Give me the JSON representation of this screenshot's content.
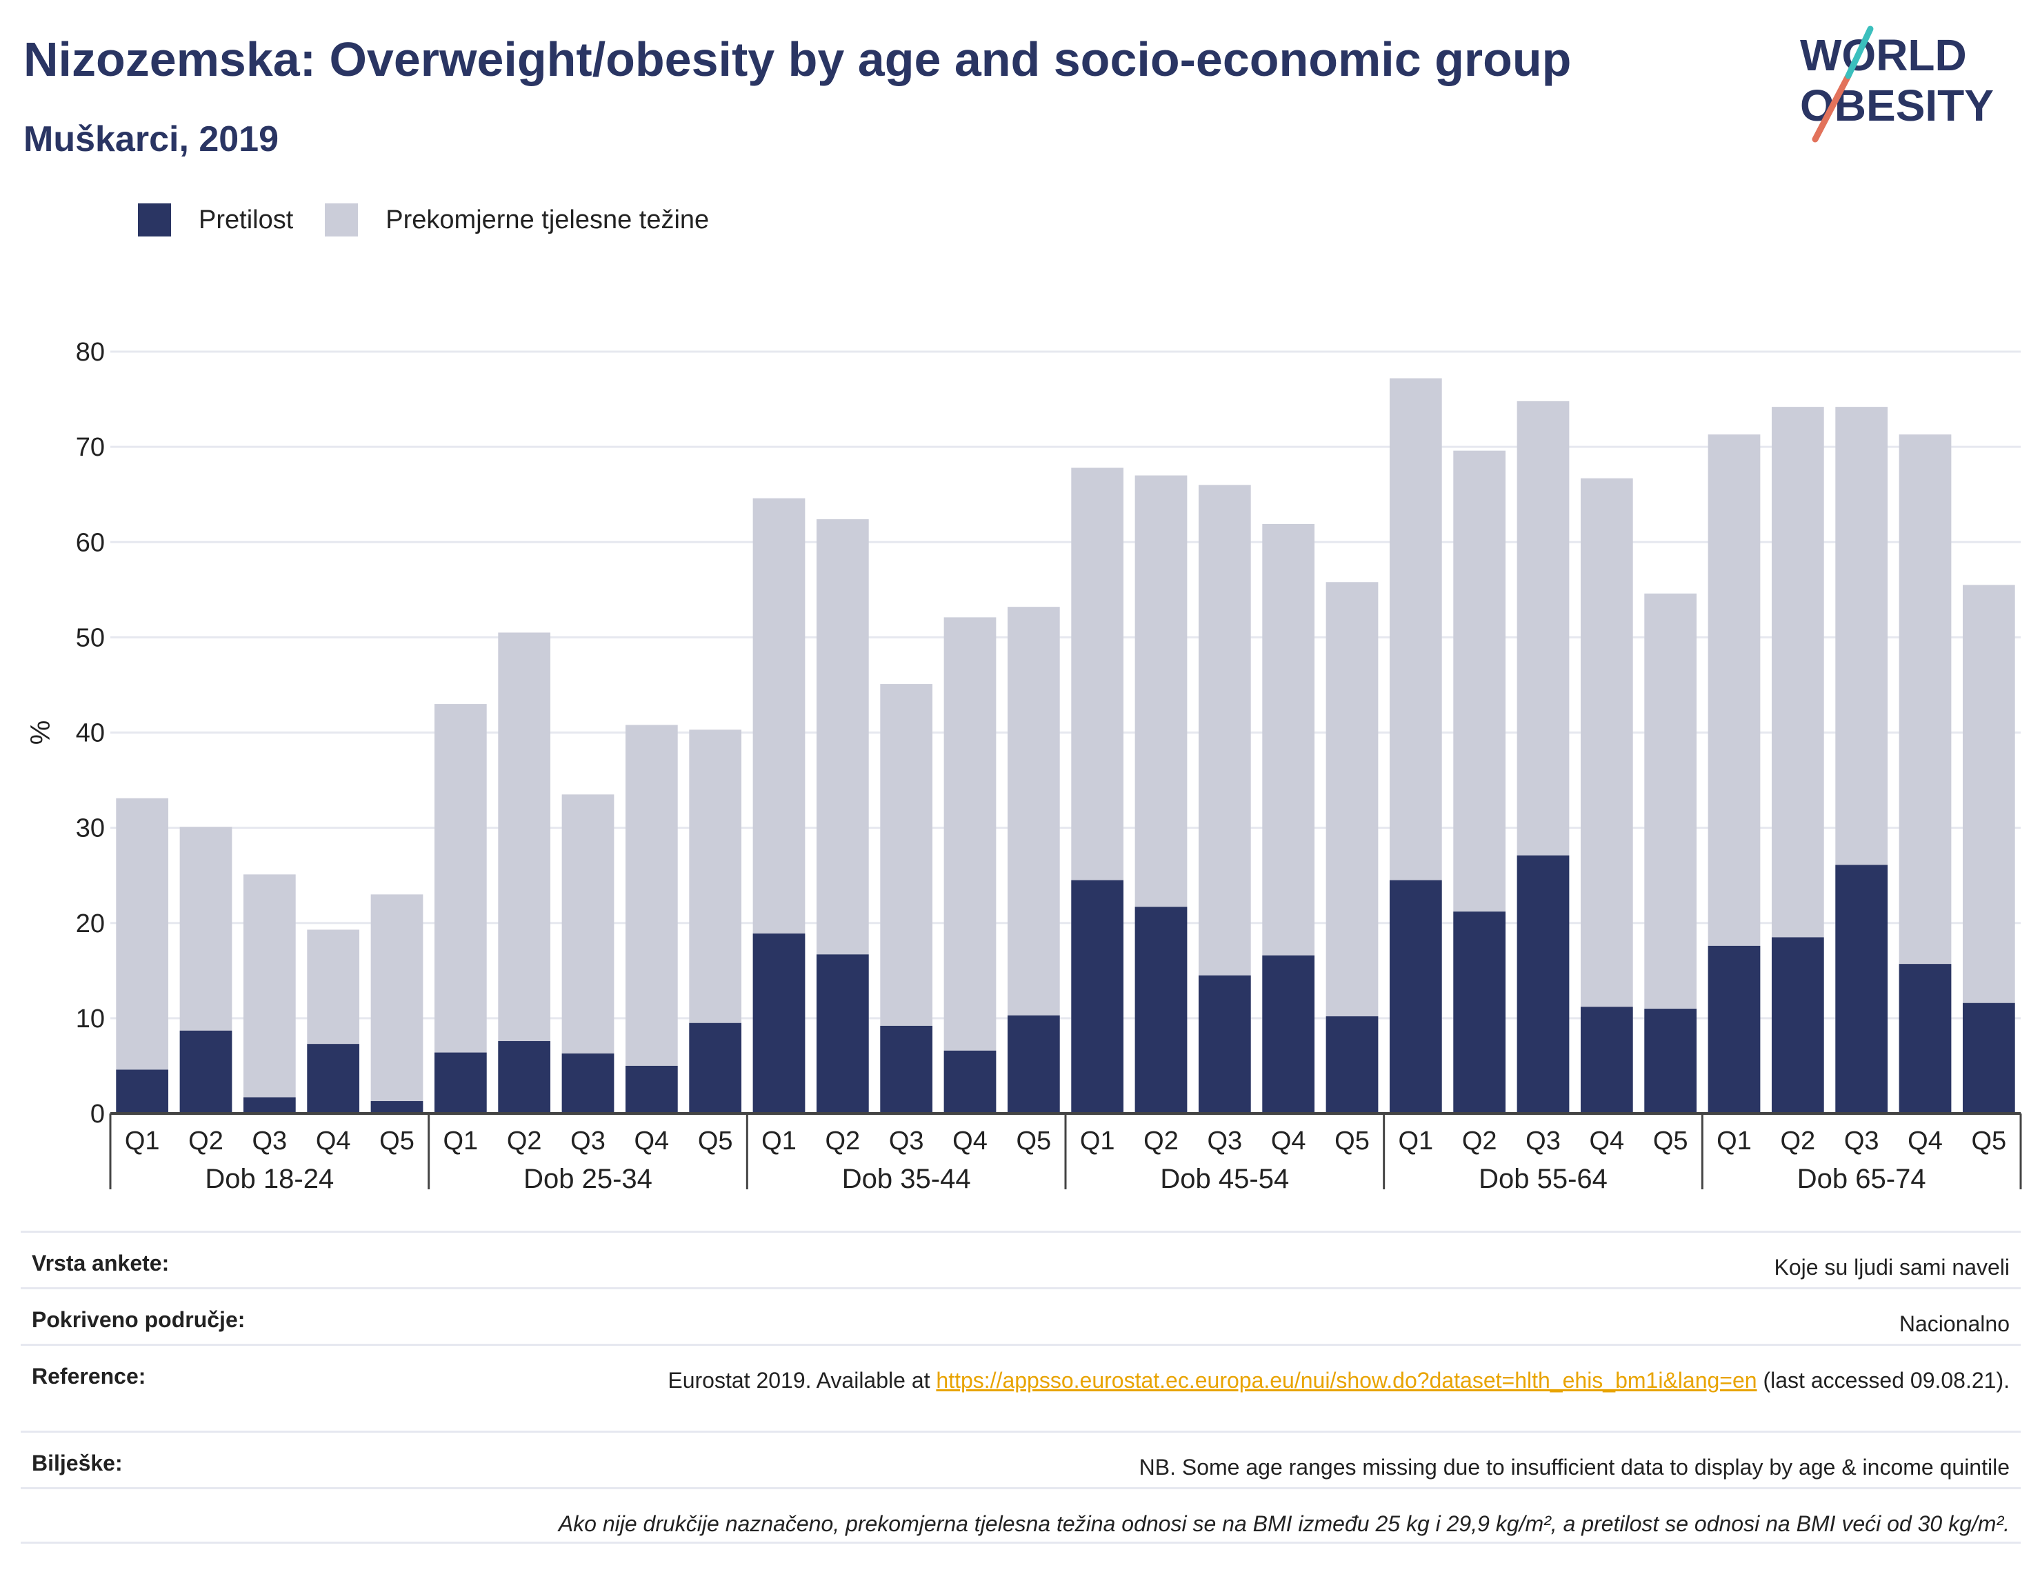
{
  "title": "Nizozemska: Overweight/obesity by age and socio-economic group",
  "subtitle": "Muškarci, 2019",
  "logo": {
    "line1": "WORLD",
    "line2": "OBESITY"
  },
  "legend": {
    "obesity_label": "Pretilost",
    "overweight_label": "Prekomjerne tjelesne težine"
  },
  "colors": {
    "obesity": "#2a3563",
    "overweight": "#cbcdd9",
    "title": "#2a3563",
    "link": "#e8a300",
    "logo_teal": "#3bbfbd",
    "logo_coral": "#e2725b"
  },
  "chart_data": {
    "type": "bar",
    "stacked": false,
    "ylabel": "%",
    "ylim": [
      0,
      80
    ],
    "yticks": [
      0,
      10,
      20,
      30,
      40,
      50,
      60,
      70,
      80
    ],
    "grid": true,
    "legend_position": "top-left",
    "groups": [
      "Dob 18-24",
      "Dob 25-34",
      "Dob 35-44",
      "Dob 45-54",
      "Dob 55-64",
      "Dob 65-74"
    ],
    "quintiles": [
      "Q1",
      "Q2",
      "Q3",
      "Q4",
      "Q5"
    ],
    "series": [
      {
        "name": "Prekomjerne tjelesne težine",
        "values": [
          33.1,
          30.1,
          25.1,
          19.3,
          23.0,
          43.0,
          50.5,
          33.5,
          40.8,
          40.3,
          64.6,
          62.4,
          45.1,
          52.1,
          53.2,
          67.8,
          67.0,
          66.0,
          61.9,
          55.8,
          77.2,
          69.6,
          74.8,
          66.7,
          54.6,
          71.3,
          74.2,
          74.2,
          71.3,
          55.5
        ]
      },
      {
        "name": "Pretilost",
        "values": [
          4.6,
          8.7,
          1.7,
          7.3,
          1.3,
          6.4,
          7.6,
          6.3,
          5.0,
          9.5,
          18.9,
          16.7,
          9.2,
          6.6,
          10.3,
          24.5,
          21.7,
          14.5,
          16.6,
          10.2,
          24.5,
          21.2,
          27.1,
          11.2,
          11.0,
          17.6,
          18.5,
          26.1,
          15.7,
          11.6
        ]
      }
    ]
  },
  "info": {
    "survey_type_label": "Vrsta ankete:",
    "survey_type_value": "Koje su ljudi sami naveli",
    "coverage_label": "Pokriveno područje:",
    "coverage_value": "Nacionalno",
    "reference_label": "Reference:",
    "reference_prefix": "Eurostat 2019. Available at ",
    "reference_link": "https://appsso.eurostat.ec.europa.eu/nui/show.do?dataset=hlth_ehis_bm1i&lang=en",
    "reference_suffix": " (last accessed 09.08.21).",
    "notes_label": "Bilješke:",
    "notes_value": "NB. Some age ranges missing due to insufficient data to display by age & income quintile",
    "definition_note": "Ako nije drukčije naznačeno, prekomjerna tjelesna težina odnosi se na BMI između 25 kg i 29,9 kg/m², a pretilost se odnosi na BMI veći od 30 kg/m²."
  }
}
